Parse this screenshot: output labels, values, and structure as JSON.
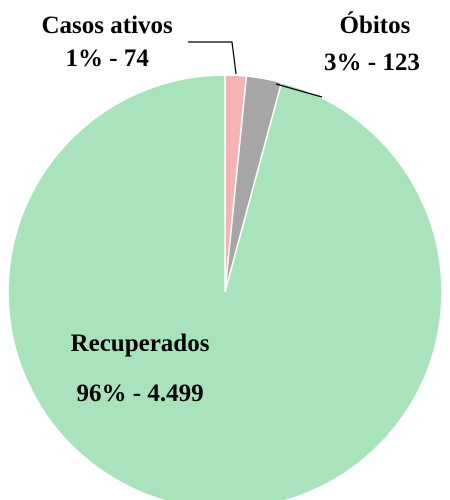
{
  "chart_data": {
    "type": "pie",
    "categories": [
      "Casos ativos",
      "Óbitos",
      "Recuperados"
    ],
    "values": [
      74,
      123,
      4499
    ],
    "value_labels": [
      "1% - 74",
      "3% - 123",
      "96% - 4.499"
    ],
    "colors": [
      "#f4b4b4",
      "#a6a6a6",
      "#a8e3bb"
    ]
  }
}
